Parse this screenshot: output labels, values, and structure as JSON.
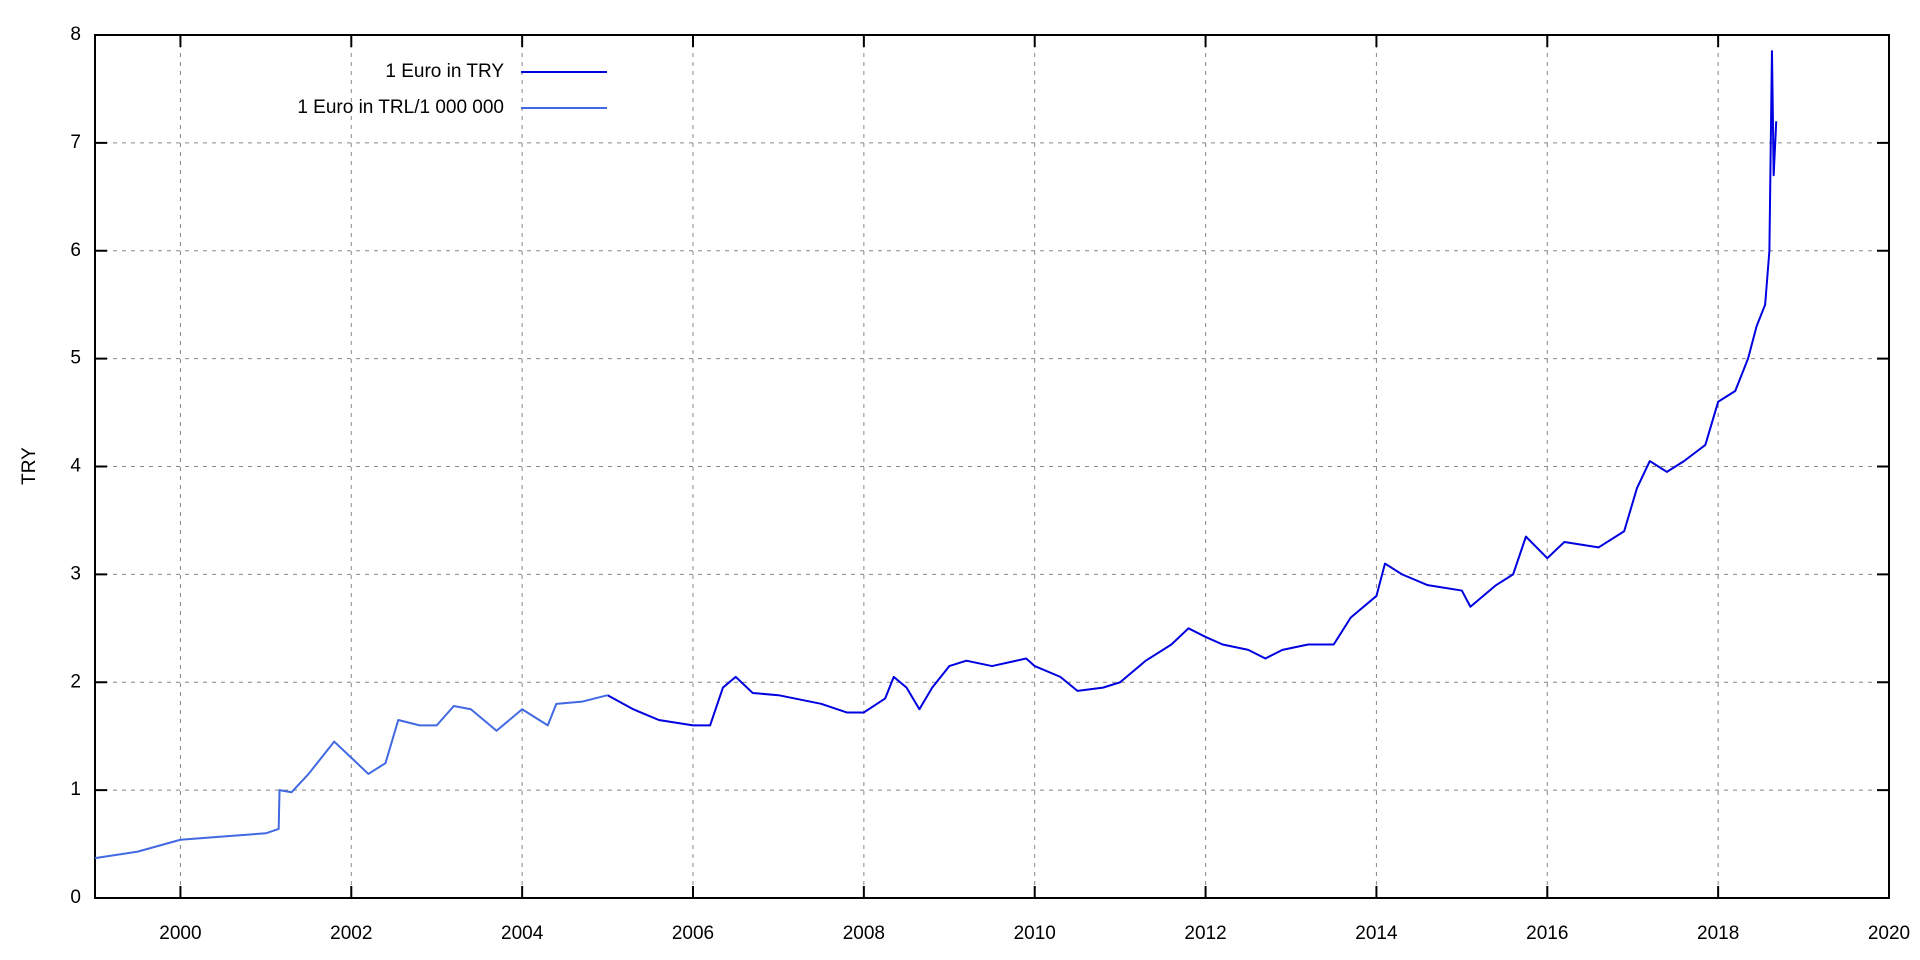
{
  "chart_data": {
    "type": "line",
    "y_label": "TRY",
    "xlim": [
      1999,
      2020
    ],
    "ylim": [
      0,
      8
    ],
    "xticks": [
      2000,
      2002,
      2004,
      2006,
      2008,
      2010,
      2012,
      2014,
      2016,
      2018,
      2020
    ],
    "yticks": [
      0,
      1,
      2,
      3,
      4,
      5,
      6,
      7,
      8
    ],
    "grid": true,
    "legend": "top-left",
    "series": [
      {
        "name": "1 Euro in TRY",
        "color": "#0000e0",
        "x": [
          2005.0,
          2005.3,
          2005.6,
          2006.0,
          2006.2,
          2006.35,
          2006.5,
          2006.7,
          2007.0,
          2007.5,
          2007.8,
          2008.0,
          2008.25,
          2008.35,
          2008.5,
          2008.65,
          2008.8,
          2009.0,
          2009.2,
          2009.5,
          2009.9,
          2010.0,
          2010.3,
          2010.5,
          2010.8,
          2011.0,
          2011.3,
          2011.6,
          2011.8,
          2012.0,
          2012.2,
          2012.5,
          2012.7,
          2012.9,
          2013.2,
          2013.5,
          2013.7,
          2014.0,
          2014.1,
          2014.3,
          2014.6,
          2015.0,
          2015.1,
          2015.4,
          2015.6,
          2015.75,
          2016.0,
          2016.2,
          2016.6,
          2016.9,
          2017.05,
          2017.2,
          2017.4,
          2017.6,
          2017.85,
          2018.0,
          2018.2,
          2018.35,
          2018.45,
          2018.55,
          2018.6,
          2018.63,
          2018.65,
          2018.68
        ],
        "values": [
          1.88,
          1.75,
          1.65,
          1.6,
          1.6,
          1.95,
          2.05,
          1.9,
          1.88,
          1.8,
          1.72,
          1.72,
          1.85,
          2.05,
          1.95,
          1.75,
          1.95,
          2.15,
          2.2,
          2.15,
          2.22,
          2.15,
          2.05,
          1.92,
          1.95,
          2.0,
          2.2,
          2.35,
          2.5,
          2.42,
          2.35,
          2.3,
          2.22,
          2.3,
          2.35,
          2.35,
          2.6,
          2.8,
          3.1,
          3.0,
          2.9,
          2.85,
          2.7,
          2.9,
          3.0,
          3.35,
          3.15,
          3.3,
          3.25,
          3.4,
          3.8,
          4.05,
          3.95,
          4.05,
          4.2,
          4.6,
          4.7,
          5.0,
          5.3,
          5.5,
          6.0,
          7.85,
          6.7,
          7.2
        ]
      },
      {
        "name": "1 Euro in TRL/1 000 000",
        "color": "#4169e1",
        "x": [
          1999.0,
          1999.5,
          2000.0,
          2000.5,
          2001.0,
          2001.15,
          2001.16,
          2001.3,
          2001.5,
          2001.8,
          2002.0,
          2002.2,
          2002.4,
          2002.55,
          2002.8,
          2003.0,
          2003.2,
          2003.4,
          2003.7,
          2004.0,
          2004.3,
          2004.4,
          2004.7,
          2005.0
        ],
        "values": [
          0.37,
          0.43,
          0.54,
          0.57,
          0.6,
          0.64,
          1.0,
          0.98,
          1.15,
          1.45,
          1.3,
          1.15,
          1.25,
          1.65,
          1.6,
          1.6,
          1.78,
          1.75,
          1.55,
          1.75,
          1.6,
          1.8,
          1.82,
          1.88
        ]
      }
    ]
  }
}
